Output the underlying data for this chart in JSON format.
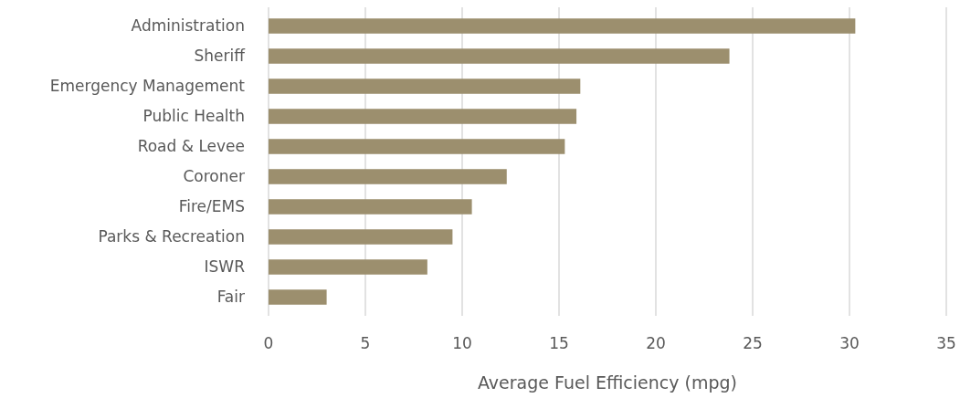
{
  "chart_data": {
    "type": "bar",
    "orientation": "horizontal",
    "xlabel": "Average Fuel Efficiency (mpg)",
    "categories": [
      "Administration",
      "Sheriff",
      "Emergency Management",
      "Public Health",
      "Road & Levee",
      "Coroner",
      "Fire/EMS",
      "Parks & Recreation",
      "ISWR",
      "Fair"
    ],
    "values": [
      30.3,
      23.8,
      16.1,
      15.9,
      15.3,
      12.3,
      10.5,
      9.5,
      8.2,
      3.0
    ],
    "color": "#9c8f6e",
    "xlim": [
      0,
      35
    ],
    "xticks": [
      0,
      5,
      10,
      15,
      20,
      25,
      30,
      35
    ],
    "grid": "x"
  }
}
